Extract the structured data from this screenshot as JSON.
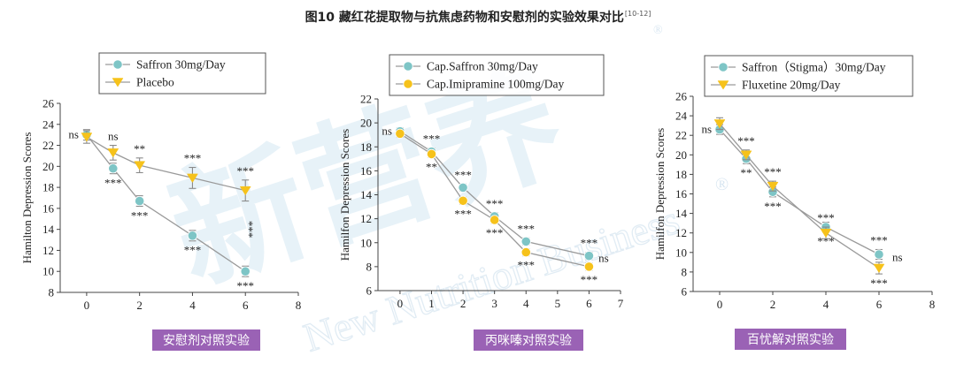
{
  "figure": {
    "title": "图10 藏红花提取物与抗焦虑药物和安慰剂的实验效果对比",
    "citation": "[10-12]"
  },
  "watermark": {
    "logo_text": "新营养",
    "brand_text": "New Nutrition Business",
    "registered_mark": "®"
  },
  "chart_data": [
    {
      "type": "line",
      "caption": "安慰剂对照实验",
      "ylabel": "Hamilton Depression Scores",
      "xlabel": "",
      "xlim": [
        -1,
        8
      ],
      "ylim": [
        8,
        26
      ],
      "xticks": [
        0,
        2,
        4,
        6,
        8
      ],
      "yticks": [
        8,
        10,
        12,
        14,
        16,
        18,
        20,
        22,
        24,
        26
      ],
      "grid": false,
      "legend": "top-left",
      "series": [
        {
          "name": "Saffron 30mg/Day",
          "color": "#7ec5c6",
          "marker": "circle",
          "x": [
            0,
            1,
            2,
            4,
            6
          ],
          "y": [
            23.0,
            19.8,
            16.7,
            13.4,
            10.0
          ],
          "err": [
            0.5,
            0.5,
            0.5,
            0.5,
            0.5
          ],
          "annotations": [
            "ns",
            "***",
            "***",
            "***",
            "***"
          ],
          "annotation_pos": [
            "left",
            "below",
            "below",
            "below",
            "below"
          ]
        },
        {
          "name": "Placebo",
          "color": "#f6c21b",
          "marker": "triangle-down",
          "x": [
            0,
            1,
            2,
            4,
            6
          ],
          "y": [
            22.8,
            21.3,
            20.1,
            18.9,
            17.7
          ],
          "err": [
            0.6,
            0.7,
            0.7,
            1.0,
            1.0
          ],
          "annotations": [
            "",
            "ns",
            "**",
            "***",
            "***"
          ],
          "annotation_pos": [
            "",
            "above",
            "above",
            "above",
            "above"
          ]
        }
      ],
      "extra_annotations": [
        {
          "text": "***",
          "x": 6,
          "y": 14.0,
          "rotate": 90
        }
      ]
    },
    {
      "type": "line",
      "caption": "丙咪嗪对照实验",
      "ylabel": "Hamilfon Depression Scores",
      "xlabel": "",
      "xlim": [
        -0.7,
        7
      ],
      "ylim": [
        6,
        22
      ],
      "xticks": [
        0,
        1,
        2,
        3,
        4,
        5,
        6,
        7
      ],
      "yticks": [
        6,
        8,
        10,
        12,
        14,
        16,
        18,
        20,
        22
      ],
      "grid": false,
      "legend": "top-left",
      "series": [
        {
          "name": "Cap.Saffron 30mg/Day",
          "color": "#7ec5c6",
          "marker": "circle",
          "x": [
            0,
            1,
            2,
            3,
            4,
            6
          ],
          "y": [
            19.3,
            17.6,
            14.6,
            12.2,
            10.1,
            8.9
          ],
          "err": [
            0.3,
            0.3,
            0.3,
            0.3,
            0.3,
            0.3
          ],
          "annotations": [
            "ns",
            "***",
            "***",
            "***",
            "***",
            "***"
          ],
          "annotation_pos": [
            "left",
            "above",
            "above",
            "above",
            "above",
            "above"
          ]
        },
        {
          "name": "Cap.Imipramine 100mg/Day",
          "color": "#f6c21b",
          "marker": "circle",
          "x": [
            0,
            1,
            2,
            3,
            4,
            6
          ],
          "y": [
            19.1,
            17.4,
            13.5,
            11.9,
            9.2,
            8.0
          ],
          "err": [
            0.3,
            0.3,
            0.3,
            0.3,
            0.3,
            0.3
          ],
          "annotations": [
            "",
            "**",
            "***",
            "***",
            "***",
            "***"
          ],
          "annotation_pos": [
            "",
            "below",
            "below",
            "below",
            "below",
            "below"
          ]
        }
      ],
      "extra_annotations": [
        {
          "text": "ns",
          "x": 6.3,
          "y": 8.4,
          "rotate": 0
        }
      ]
    },
    {
      "type": "line",
      "caption": "百忧解对照实验",
      "ylabel": "Hamilfon Depression Scores",
      "xlabel": "",
      "xlim": [
        -1,
        8
      ],
      "ylim": [
        6,
        26
      ],
      "xticks": [
        0,
        2,
        4,
        6,
        8
      ],
      "yticks": [
        6,
        8,
        10,
        12,
        14,
        16,
        18,
        20,
        22,
        24,
        26
      ],
      "grid": false,
      "legend": "top-left",
      "series": [
        {
          "name": "Saffron（Stigma）30mg/Day",
          "color": "#7ec5c6",
          "marker": "circle",
          "x": [
            0,
            1,
            2,
            4,
            6
          ],
          "y": [
            22.6,
            19.6,
            16.2,
            12.6,
            9.8
          ],
          "err": [
            0.5,
            0.5,
            0.5,
            0.5,
            0.5
          ],
          "annotations": [
            "ns",
            "**",
            "***",
            "***",
            "***"
          ],
          "annotation_pos": [
            "left",
            "below",
            "below",
            "below",
            "above"
          ]
        },
        {
          "name": "Fluxetine 20mg/Day",
          "color": "#f6c21b",
          "marker": "triangle-down",
          "x": [
            0,
            1,
            2,
            4,
            6
          ],
          "y": [
            23.2,
            20.0,
            16.8,
            12.0,
            8.4
          ],
          "err": [
            0.6,
            0.5,
            0.5,
            0.6,
            0.6
          ],
          "annotations": [
            "",
            "***",
            "***",
            "***",
            "***"
          ],
          "annotation_pos": [
            "",
            "above",
            "above",
            "above",
            "below"
          ]
        }
      ],
      "extra_annotations": [
        {
          "text": "ns",
          "x": 6.5,
          "y": 9.1,
          "rotate": 0
        }
      ]
    }
  ]
}
